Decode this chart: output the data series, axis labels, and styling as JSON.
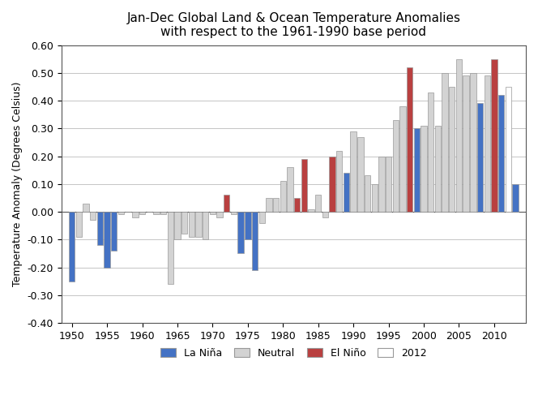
{
  "title_line1": "Jan-Dec Global Land & Ocean Temperature Anomalies",
  "title_line2": "with respect to the 1961-1990 base period",
  "ylabel": "Temperature Anomaly (Degrees Celsius)",
  "ylim": [
    -0.4,
    0.6
  ],
  "yticks": [
    -0.4,
    -0.3,
    -0.2,
    -0.1,
    0.0,
    0.1,
    0.2,
    0.3,
    0.4,
    0.5,
    0.6
  ],
  "xticks": [
    1950,
    1955,
    1960,
    1965,
    1970,
    1975,
    1980,
    1985,
    1990,
    1995,
    2000,
    2005,
    2010
  ],
  "colors": {
    "la_nina": "#4472C4",
    "neutral": "#D3D3D3",
    "el_nino": "#B94040",
    "year2012": "#FFFFFF",
    "bar_edge": "#999999"
  },
  "legend_labels": [
    "La Niña",
    "Neutral",
    "El Niño",
    "2012"
  ],
  "data": [
    {
      "year": 1950,
      "value": -0.25,
      "type": "la_nina"
    },
    {
      "year": 1951,
      "value": -0.09,
      "type": "neutral"
    },
    {
      "year": 1952,
      "value": 0.03,
      "type": "neutral"
    },
    {
      "year": 1953,
      "value": -0.03,
      "type": "neutral"
    },
    {
      "year": 1954,
      "value": -0.12,
      "type": "la_nina"
    },
    {
      "year": 1955,
      "value": -0.2,
      "type": "la_nina"
    },
    {
      "year": 1956,
      "value": -0.14,
      "type": "la_nina"
    },
    {
      "year": 1957,
      "value": -0.01,
      "type": "neutral"
    },
    {
      "year": 1958,
      "value": 0.0,
      "type": "neutral"
    },
    {
      "year": 1959,
      "value": -0.02,
      "type": "neutral"
    },
    {
      "year": 1960,
      "value": -0.01,
      "type": "neutral"
    },
    {
      "year": 1961,
      "value": 0.0,
      "type": "neutral"
    },
    {
      "year": 1962,
      "value": -0.01,
      "type": "neutral"
    },
    {
      "year": 1963,
      "value": -0.01,
      "type": "neutral"
    },
    {
      "year": 1964,
      "value": -0.26,
      "type": "neutral"
    },
    {
      "year": 1965,
      "value": -0.1,
      "type": "neutral"
    },
    {
      "year": 1966,
      "value": -0.08,
      "type": "neutral"
    },
    {
      "year": 1967,
      "value": -0.09,
      "type": "neutral"
    },
    {
      "year": 1968,
      "value": -0.09,
      "type": "neutral"
    },
    {
      "year": 1969,
      "value": -0.1,
      "type": "neutral"
    },
    {
      "year": 1970,
      "value": -0.01,
      "type": "neutral"
    },
    {
      "year": 1971,
      "value": -0.02,
      "type": "neutral"
    },
    {
      "year": 1972,
      "value": 0.06,
      "type": "el_nino"
    },
    {
      "year": 1973,
      "value": -0.01,
      "type": "neutral"
    },
    {
      "year": 1974,
      "value": -0.15,
      "type": "la_nina"
    },
    {
      "year": 1975,
      "value": -0.1,
      "type": "la_nina"
    },
    {
      "year": 1976,
      "value": -0.21,
      "type": "la_nina"
    },
    {
      "year": 1977,
      "value": -0.04,
      "type": "neutral"
    },
    {
      "year": 1978,
      "value": 0.05,
      "type": "neutral"
    },
    {
      "year": 1979,
      "value": 0.05,
      "type": "neutral"
    },
    {
      "year": 1980,
      "value": 0.11,
      "type": "neutral"
    },
    {
      "year": 1981,
      "value": 0.16,
      "type": "neutral"
    },
    {
      "year": 1982,
      "value": 0.05,
      "type": "el_nino"
    },
    {
      "year": 1983,
      "value": 0.19,
      "type": "el_nino"
    },
    {
      "year": 1984,
      "value": 0.01,
      "type": "neutral"
    },
    {
      "year": 1985,
      "value": 0.06,
      "type": "neutral"
    },
    {
      "year": 1986,
      "value": -0.02,
      "type": "neutral"
    },
    {
      "year": 1987,
      "value": 0.2,
      "type": "el_nino"
    },
    {
      "year": 1988,
      "value": 0.22,
      "type": "neutral"
    },
    {
      "year": 1989,
      "value": 0.14,
      "type": "la_nina"
    },
    {
      "year": 1990,
      "value": 0.29,
      "type": "neutral"
    },
    {
      "year": 1991,
      "value": 0.27,
      "type": "neutral"
    },
    {
      "year": 1992,
      "value": 0.13,
      "type": "neutral"
    },
    {
      "year": 1993,
      "value": 0.1,
      "type": "neutral"
    },
    {
      "year": 1994,
      "value": 0.2,
      "type": "neutral"
    },
    {
      "year": 1995,
      "value": 0.2,
      "type": "neutral"
    },
    {
      "year": 1996,
      "value": 0.33,
      "type": "neutral"
    },
    {
      "year": 1997,
      "value": 0.38,
      "type": "neutral"
    },
    {
      "year": 1998,
      "value": 0.52,
      "type": "el_nino"
    },
    {
      "year": 1999,
      "value": 0.3,
      "type": "la_nina"
    },
    {
      "year": 2000,
      "value": 0.31,
      "type": "neutral"
    },
    {
      "year": 2001,
      "value": 0.43,
      "type": "neutral"
    },
    {
      "year": 2002,
      "value": 0.31,
      "type": "neutral"
    },
    {
      "year": 2003,
      "value": 0.5,
      "type": "neutral"
    },
    {
      "year": 2004,
      "value": 0.45,
      "type": "neutral"
    },
    {
      "year": 2005,
      "value": 0.55,
      "type": "neutral"
    },
    {
      "year": 2006,
      "value": 0.49,
      "type": "neutral"
    },
    {
      "year": 2007,
      "value": 0.5,
      "type": "neutral"
    },
    {
      "year": 2008,
      "value": 0.39,
      "type": "la_nina"
    },
    {
      "year": 2009,
      "value": 0.49,
      "type": "neutral"
    },
    {
      "year": 2010,
      "value": 0.55,
      "type": "el_nino"
    },
    {
      "year": 2011,
      "value": 0.42,
      "type": "la_nina"
    },
    {
      "year": 2012,
      "value": 0.45,
      "type": "year2012"
    },
    {
      "year": 2013,
      "value": 0.1,
      "type": "la_nina"
    }
  ]
}
